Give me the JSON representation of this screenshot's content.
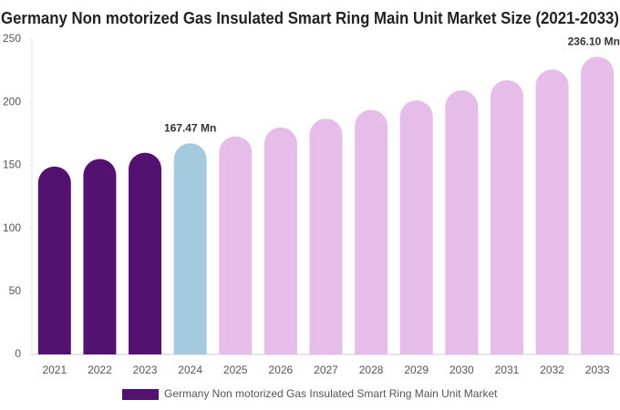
{
  "chart_data": {
    "type": "bar",
    "title": "Germany Non motorized Gas Insulated Smart Ring Main Unit Market Size (2021-2033)",
    "categories": [
      "2021",
      "2022",
      "2023",
      "2024",
      "2025",
      "2026",
      "2027",
      "2028",
      "2029",
      "2030",
      "2031",
      "2032",
      "2033"
    ],
    "series": [
      {
        "name": "Germany Non motorized Gas Insulated Smart Ring Main Unit Market",
        "color": "#541270",
        "colors": [
          "#541270",
          "#541270",
          "#541270",
          "#a5cade",
          "#e6bde8",
          "#e6bde8",
          "#e6bde8",
          "#e6bde8",
          "#e6bde8",
          "#e6bde8",
          "#e6bde8",
          "#e6bde8",
          "#e6bde8"
        ],
        "values": [
          149,
          155,
          160,
          167.47,
          173,
          180,
          187,
          194,
          201.5,
          209.5,
          217.5,
          226,
          236.1
        ],
        "value_labels": [
          null,
          null,
          null,
          "167.47 Mn",
          null,
          null,
          null,
          null,
          null,
          null,
          null,
          null,
          "236.10 Mn"
        ]
      }
    ],
    "ylim": [
      0,
      250
    ],
    "yticks": [
      0,
      50,
      100,
      150,
      200,
      250
    ]
  }
}
